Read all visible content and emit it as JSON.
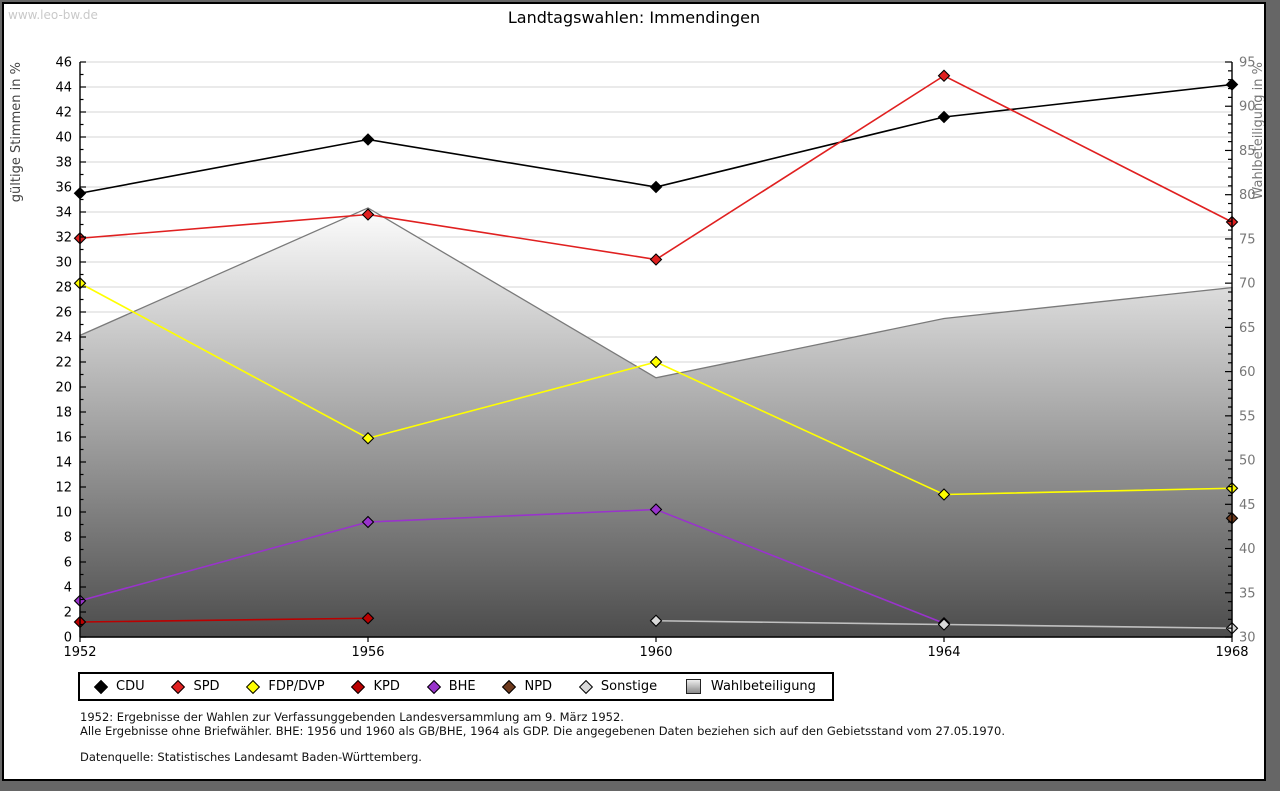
{
  "watermark": "www.leo-bw.de",
  "title": "Landtagswahlen: Immendingen",
  "footnotes": {
    "line1": "1952: Ergebnisse der Wahlen zur Verfassunggebenden Landesversammlung am 9. März 1952.",
    "line2": "Alle Ergebnisse ohne Briefwähler. BHE: 1956 und 1960 als GB/BHE, 1964 als GDP. Die angegebenen Daten beziehen sich auf den Gebietsstand vom 27.05.1970.",
    "line3": "Datenquelle: Statistisches Landesamt Baden-Württemberg."
  },
  "chart_data": {
    "type": "line",
    "title": "Landtagswahlen: Immendingen",
    "x": [
      1952,
      1956,
      1960,
      1964,
      1968
    ],
    "left_axis": {
      "label": "gültige Stimmen in %",
      "min": 0,
      "max": 46,
      "major_step": 2,
      "minor_step": 1
    },
    "right_axis": {
      "label": "Wahlbeteiligung in %",
      "min": 30,
      "max": 95,
      "major_step": 5,
      "minor_step": 1
    },
    "grid": true,
    "legend_position": "bottom",
    "colors": {
      "grid": "#d6d6d6",
      "axis": "#000000",
      "right_axis_text": "#777777",
      "area_stroke": "#7a7a7a",
      "area_fill_top": "#fdfdfd",
      "area_fill_bottom": "#4c4c4c"
    },
    "series": [
      {
        "name": "CDU",
        "axis": "left",
        "type": "line",
        "marker": "diamond",
        "color": "#000000",
        "values": [
          35.5,
          39.8,
          36.0,
          41.6,
          44.2
        ]
      },
      {
        "name": "SPD",
        "axis": "left",
        "type": "line",
        "marker": "diamond",
        "color": "#e02020",
        "values": [
          31.9,
          33.8,
          30.2,
          44.9,
          33.2
        ]
      },
      {
        "name": "FDP/DVP",
        "axis": "left",
        "type": "line",
        "marker": "diamond",
        "color": "#ffff00",
        "values": [
          28.3,
          15.9,
          22.0,
          11.4,
          11.9
        ]
      },
      {
        "name": "KPD",
        "axis": "left",
        "type": "line",
        "marker": "diamond",
        "color": "#bb0000",
        "values": [
          1.2,
          1.5,
          null,
          null,
          null
        ]
      },
      {
        "name": "BHE",
        "axis": "left",
        "type": "line",
        "marker": "diamond",
        "color": "#9933cc",
        "values": [
          2.9,
          9.2,
          10.2,
          1.1,
          null
        ]
      },
      {
        "name": "NPD",
        "axis": "left",
        "type": "line",
        "marker": "diamond",
        "color": "#6e3a1d",
        "values": [
          null,
          null,
          null,
          null,
          9.5
        ]
      },
      {
        "name": "Sonstige",
        "axis": "left",
        "type": "line",
        "marker": "diamond",
        "color": "#d9d9d9",
        "line_color": "#c0c0c0",
        "values": [
          null,
          null,
          1.3,
          1.0,
          0.7
        ]
      },
      {
        "name": "Wahlbeteiligung",
        "axis": "right",
        "type": "area",
        "marker": "none",
        "color": "#bfbfbf",
        "values": [
          64.1,
          78.5,
          59.3,
          66.0,
          69.5
        ]
      }
    ]
  }
}
